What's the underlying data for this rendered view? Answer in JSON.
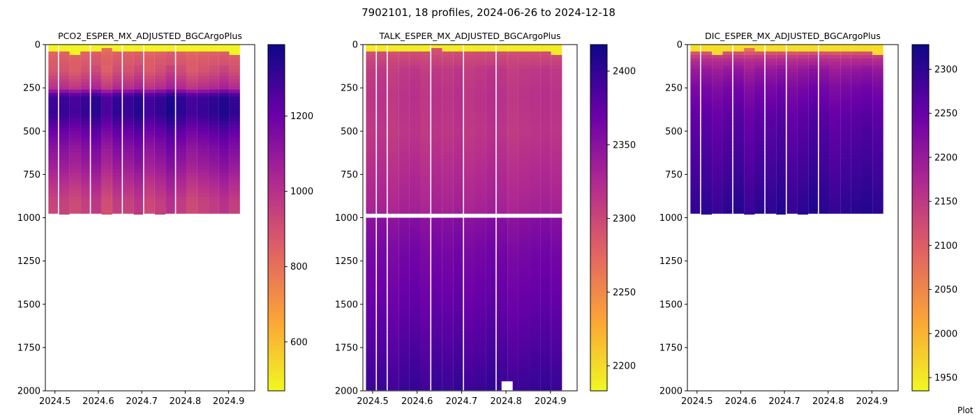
{
  "figure": {
    "suptitle": "7902101, 18 profiles, 2024-06-26 to 2024-12-18",
    "corner_text": "Plot"
  },
  "colormap": {
    "name": "plasma",
    "stops": [
      "#f0f921",
      "#fca636",
      "#e16462",
      "#b12a90",
      "#6a00a8",
      "#0d0887"
    ]
  },
  "chart_data": [
    {
      "type": "heatmap",
      "title": "PCO2_ESPER_MX_ADJUSTED_BGCArgoPlus",
      "x_ticks": [
        "2024.5",
        "2024.6",
        "2024.7",
        "2024.8",
        "2024.9"
      ],
      "y_ticks": [
        "0",
        "250",
        "500",
        "750",
        "1000",
        "1250",
        "1500",
        "1750",
        "2000"
      ],
      "y_inverted": true,
      "xlim": [
        2024.478,
        2024.96
      ],
      "ylim": [
        0,
        2000
      ],
      "colorbar_ticks": [
        "600",
        "800",
        "1000",
        "1200"
      ],
      "colorbar_range": [
        470,
        1390
      ],
      "profiles": {
        "x_start": 2024.485,
        "x_step": 0.0245,
        "count": 18,
        "gap_after": [
          0,
          3,
          6,
          8,
          11
        ],
        "max_depth": [
          975,
          980,
          975,
          975,
          975,
          980,
          975,
          975,
          980,
          975,
          980,
          975,
          975,
          975,
          975,
          975,
          975,
          975
        ],
        "top_layer_depth": [
          40,
          30,
          60,
          35,
          40,
          20,
          25,
          35,
          30,
          25,
          40,
          30,
          40,
          25,
          30,
          40,
          35,
          55
        ]
      },
      "depth_levels": [
        0,
        30,
        80,
        150,
        250,
        300,
        400,
        500,
        600,
        700,
        800,
        900,
        980
      ],
      "level_values": [
        480,
        820,
        860,
        880,
        1000,
        1290,
        1300,
        1200,
        1120,
        1070,
        1000,
        940,
        930
      ],
      "profile_offsets": [
        0,
        10,
        -20,
        15,
        40,
        -30,
        25,
        10,
        50,
        -10,
        20,
        70,
        30,
        -15,
        10,
        30,
        60,
        20
      ]
    },
    {
      "type": "heatmap",
      "title": "TALK_ESPER_MX_ADJUSTED_BGCArgoPlus",
      "x_ticks": [
        "2024.5",
        "2024.6",
        "2024.7",
        "2024.8",
        "2024.9"
      ],
      "y_ticks": [
        "0",
        "250",
        "500",
        "750",
        "1000",
        "1250",
        "1500",
        "1750",
        "2000"
      ],
      "y_inverted": true,
      "xlim": [
        2024.478,
        2024.96
      ],
      "ylim": [
        0,
        2000
      ],
      "colorbar_ticks": [
        "2200",
        "2250",
        "2300",
        "2350",
        "2400"
      ],
      "colorbar_range": [
        2183,
        2418
      ],
      "profiles": {
        "x_start": 2024.485,
        "x_step": 0.0245,
        "count": 18,
        "gap_after": [
          0,
          1,
          5,
          8,
          11
        ],
        "max_depth": [
          1995,
          1995,
          1995,
          1995,
          1995,
          1995,
          1995,
          1995,
          1995,
          1995,
          1995,
          1995,
          1995,
          1995,
          1995,
          1995,
          1995,
          1995
        ],
        "top_layer_depth": [
          30,
          25,
          40,
          30,
          40,
          25,
          20,
          30,
          35,
          25,
          40,
          30,
          35,
          25,
          30,
          40,
          35,
          45
        ]
      },
      "depth_gap": [
        975,
        1000
      ],
      "white_block": {
        "x_range": [
          2024.79,
          2024.815
        ],
        "depth_range": [
          1945,
          2000
        ]
      },
      "depth_levels": [
        0,
        30,
        80,
        150,
        300,
        500,
        700,
        900,
        980,
        1000,
        1200,
        1500,
        1800,
        2000
      ],
      "level_values": [
        2190,
        2290,
        2300,
        2310,
        2315,
        2312,
        2320,
        2328,
        2332,
        2350,
        2362,
        2372,
        2385,
        2395
      ],
      "profile_offsets": [
        0,
        2,
        -3,
        2,
        4,
        -2,
        3,
        1,
        5,
        -1,
        2,
        6,
        3,
        -2,
        1,
        3,
        5,
        2
      ]
    },
    {
      "type": "heatmap",
      "title": "DIC_ESPER_MX_ADJUSTED_BGCArgoPlus",
      "x_ticks": [
        "2024.5",
        "2024.6",
        "2024.7",
        "2024.8",
        "2024.9"
      ],
      "y_ticks": [
        "0",
        "250",
        "500",
        "750",
        "1000",
        "1250",
        "1500",
        "1750",
        "2000"
      ],
      "y_inverted": true,
      "xlim": [
        2024.478,
        2024.96
      ],
      "ylim": [
        0,
        2000
      ],
      "colorbar_ticks": [
        "1950",
        "2000",
        "2050",
        "2100",
        "2150",
        "2200",
        "2250",
        "2300"
      ],
      "colorbar_range": [
        1935,
        2328
      ],
      "profiles": {
        "x_start": 2024.485,
        "x_step": 0.0245,
        "count": 18,
        "gap_after": [
          0,
          3,
          6,
          8,
          11
        ],
        "max_depth": [
          975,
          980,
          975,
          975,
          975,
          980,
          975,
          975,
          980,
          975,
          980,
          975,
          975,
          975,
          975,
          975,
          975,
          975
        ],
        "top_layer_depth": [
          40,
          30,
          60,
          35,
          40,
          20,
          25,
          35,
          30,
          25,
          40,
          30,
          40,
          25,
          30,
          40,
          35,
          55
        ]
      },
      "depth_levels": [
        0,
        30,
        80,
        150,
        250,
        400,
        600,
        800,
        980
      ],
      "level_values": [
        1960,
        2080,
        2160,
        2200,
        2230,
        2255,
        2270,
        2285,
        2300
      ],
      "profile_offsets": [
        0,
        4,
        -6,
        5,
        10,
        -8,
        6,
        3,
        12,
        -3,
        5,
        15,
        8,
        -4,
        3,
        7,
        12,
        5
      ]
    }
  ]
}
